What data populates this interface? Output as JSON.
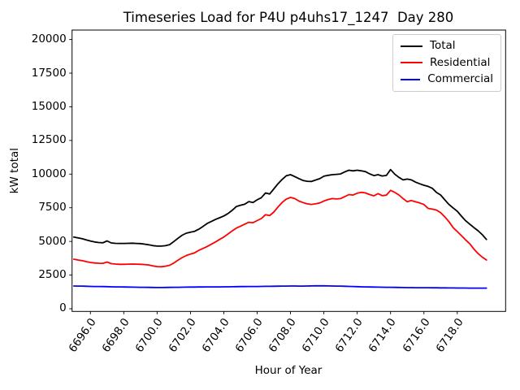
{
  "chart_data": {
    "type": "line",
    "title": "Timeseries Load for P4U p4uhs17_1247  Day 280",
    "xlabel": "Hour of Year",
    "ylabel": "kW total",
    "grid": false,
    "legend_location": "upper right",
    "xlim": [
      6694.9,
      6720.9
    ],
    "ylim": [
      -200,
      20700
    ],
    "x_ticks": [
      6696,
      6698,
      6700,
      6702,
      6704,
      6706,
      6708,
      6710,
      6712,
      6714,
      6716,
      6718
    ],
    "x_tick_labels": [
      "6696.0",
      "6698.0",
      "6700.0",
      "6702.0",
      "6704.0",
      "6706.0",
      "6708.0",
      "6710.0",
      "6712.0",
      "6714.0",
      "6716.0",
      "6718.0"
    ],
    "y_ticks": [
      0,
      2500,
      5000,
      7500,
      10000,
      12500,
      15000,
      17500,
      20000
    ],
    "y_tick_labels": [
      "0",
      "2500",
      "5000",
      "7500",
      "10000",
      "12500",
      "15000",
      "17500",
      "20000"
    ],
    "x_start": 6695.0,
    "x_step": 0.25,
    "series": [
      {
        "name": "Total",
        "color": "#000000",
        "values": [
          5320,
          5260,
          5200,
          5120,
          5030,
          4960,
          4920,
          4900,
          5040,
          4890,
          4860,
          4850,
          4850,
          4860,
          4870,
          4850,
          4840,
          4800,
          4750,
          4690,
          4650,
          4650,
          4680,
          4760,
          4990,
          5230,
          5460,
          5610,
          5690,
          5750,
          5910,
          6110,
          6330,
          6480,
          6630,
          6760,
          6890,
          7070,
          7310,
          7590,
          7690,
          7760,
          7960,
          7890,
          8090,
          8250,
          8600,
          8520,
          8900,
          9290,
          9610,
          9880,
          9960,
          9820,
          9670,
          9530,
          9470,
          9450,
          9560,
          9660,
          9840,
          9910,
          9960,
          9980,
          10010,
          10160,
          10290,
          10240,
          10290,
          10240,
          10180,
          10020,
          9890,
          9960,
          9860,
          9900,
          10340,
          10000,
          9760,
          9570,
          9630,
          9570,
          9400,
          9280,
          9170,
          9090,
          8950,
          8650,
          8450,
          8090,
          7750,
          7490,
          7240,
          6880,
          6540,
          6280,
          6030,
          5790,
          5500,
          5150
        ]
      },
      {
        "name": "Residential",
        "color": "#ff0000",
        "values": [
          3680,
          3620,
          3570,
          3500,
          3440,
          3400,
          3380,
          3370,
          3470,
          3350,
          3320,
          3300,
          3300,
          3310,
          3320,
          3310,
          3300,
          3280,
          3250,
          3180,
          3130,
          3120,
          3160,
          3230,
          3390,
          3600,
          3800,
          3950,
          4060,
          4150,
          4340,
          4480,
          4620,
          4790,
          4960,
          5150,
          5330,
          5550,
          5780,
          5990,
          6130,
          6280,
          6420,
          6390,
          6550,
          6700,
          6990,
          6920,
          7180,
          7560,
          7900,
          8140,
          8270,
          8180,
          8000,
          7890,
          7790,
          7750,
          7790,
          7860,
          8000,
          8110,
          8180,
          8150,
          8180,
          8330,
          8480,
          8440,
          8580,
          8650,
          8600,
          8480,
          8390,
          8550,
          8400,
          8440,
          8790,
          8650,
          8450,
          8180,
          7950,
          8040,
          7940,
          7860,
          7740,
          7450,
          7400,
          7330,
          7130,
          6830,
          6470,
          6030,
          5730,
          5430,
          5120,
          4820,
          4430,
          4100,
          3830,
          3620
        ]
      },
      {
        "name": "Commercial",
        "color": "#0000ff",
        "values": [
          1690,
          1685,
          1680,
          1670,
          1660,
          1655,
          1650,
          1645,
          1640,
          1630,
          1625,
          1620,
          1615,
          1610,
          1605,
          1600,
          1595,
          1590,
          1585,
          1580,
          1575,
          1575,
          1580,
          1585,
          1590,
          1595,
          1600,
          1605,
          1610,
          1610,
          1615,
          1615,
          1620,
          1620,
          1625,
          1625,
          1630,
          1630,
          1635,
          1640,
          1645,
          1645,
          1650,
          1650,
          1655,
          1660,
          1665,
          1665,
          1670,
          1675,
          1680,
          1685,
          1690,
          1690,
          1685,
          1685,
          1690,
          1695,
          1700,
          1700,
          1700,
          1695,
          1690,
          1685,
          1680,
          1670,
          1660,
          1650,
          1640,
          1630,
          1620,
          1615,
          1610,
          1605,
          1600,
          1595,
          1590,
          1585,
          1580,
          1575,
          1570,
          1570,
          1565,
          1565,
          1560,
          1560,
          1555,
          1555,
          1550,
          1550,
          1545,
          1545,
          1540,
          1540,
          1540,
          1535,
          1535,
          1530,
          1530,
          1530
        ]
      }
    ]
  }
}
